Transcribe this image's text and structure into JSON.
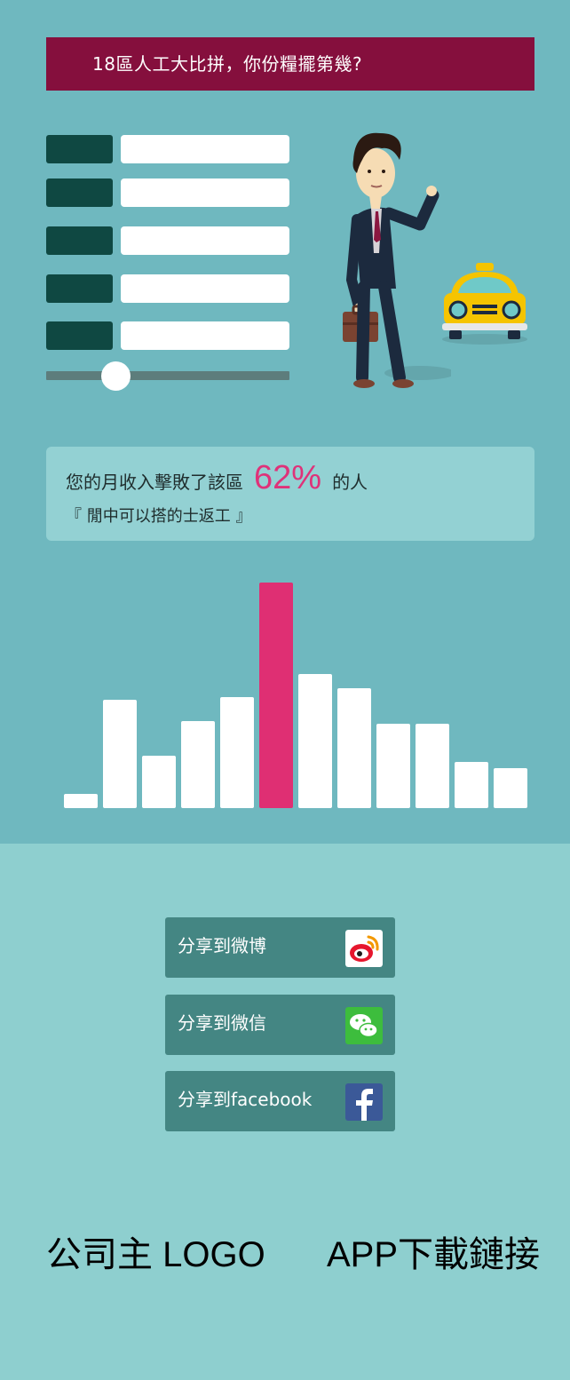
{
  "header": {
    "title": "18區人工大比拼，你份糧擺第幾?"
  },
  "form": {
    "rows": [
      {
        "label": "",
        "value": ""
      },
      {
        "label": "",
        "value": ""
      },
      {
        "label": "",
        "value": ""
      },
      {
        "label": "",
        "value": ""
      },
      {
        "label": "",
        "value": ""
      }
    ],
    "slider": {
      "value": 0.28
    }
  },
  "result": {
    "prefix": "您的月收入擊敗了該區",
    "percent": "62%",
    "suffix": "的人",
    "quote": "『 閒中可以搭的士返工 』"
  },
  "chart_data": {
    "type": "bar",
    "values": [
      16,
      122,
      59,
      98,
      125,
      254,
      151,
      135,
      95,
      95,
      52,
      45
    ],
    "highlight_index": 5,
    "highlight_color": "#df2f73",
    "bar_color": "#ffffff"
  },
  "share": {
    "weibo_label": "分享到微博",
    "wechat_label": "分享到微信",
    "facebook_label": "分享到facebook"
  },
  "footer": {
    "logo_text": "公司主 LOGO",
    "app_link_text": "APP下載鏈接"
  },
  "colors": {
    "title_bg": "#850f3d",
    "accent": "#df3279",
    "page_top": "#6fb8bf",
    "page_bottom": "#8ecfcf",
    "button": "#448683"
  },
  "icons": [
    "weibo-icon",
    "wechat-icon",
    "facebook-icon",
    "businessman-illustration",
    "taxi-illustration"
  ]
}
